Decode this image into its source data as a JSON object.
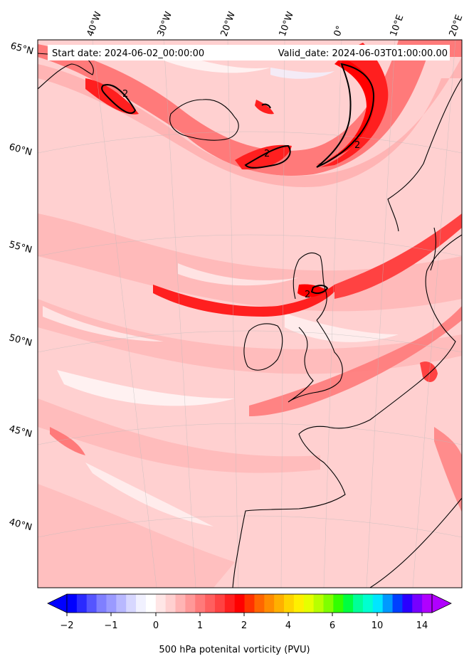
{
  "header": {
    "start_label": "Start date: 2024-06-02_00:00:00",
    "valid_label": "Valid_date: 2024-06-03T01:00:00.00"
  },
  "axes": {
    "lon_labels": [
      "40°W",
      "30°W",
      "20°W",
      "10°W",
      "0°",
      "10°E",
      "20°E"
    ],
    "lat_labels": [
      "65°N",
      "60°N",
      "55°N",
      "50°N",
      "45°N",
      "40°N"
    ]
  },
  "contour_label": "2",
  "colorbar": {
    "title": "500 hPa potenital vorticity (PVU)",
    "tick_labels": [
      "−2",
      "−1",
      "0",
      "1",
      "2",
      "4",
      "6",
      "10",
      "14"
    ],
    "colors": [
      "#0000ff",
      "#2a2aff",
      "#5555ff",
      "#7f7fff",
      "#9a9aff",
      "#b8b8ff",
      "#d7d7ff",
      "#f1f1ff",
      "#ffffff",
      "#ffe6e6",
      "#ffd0d0",
      "#ffb4b4",
      "#ff9898",
      "#ff7a7a",
      "#ff5f5f",
      "#ff4242",
      "#ff1f1f",
      "#ff0000",
      "#ff3300",
      "#ff6600",
      "#ff8c00",
      "#ffb000",
      "#ffd400",
      "#fff000",
      "#e6ff00",
      "#b8ff00",
      "#7fff00",
      "#33ff00",
      "#00ff40",
      "#00ff99",
      "#00ffd0",
      "#00e6ff",
      "#0099ff",
      "#0040ff",
      "#2a00ff",
      "#7700ff",
      "#b000ff"
    ],
    "under_color": "#0000ff",
    "over_color": "#b000ff"
  }
}
